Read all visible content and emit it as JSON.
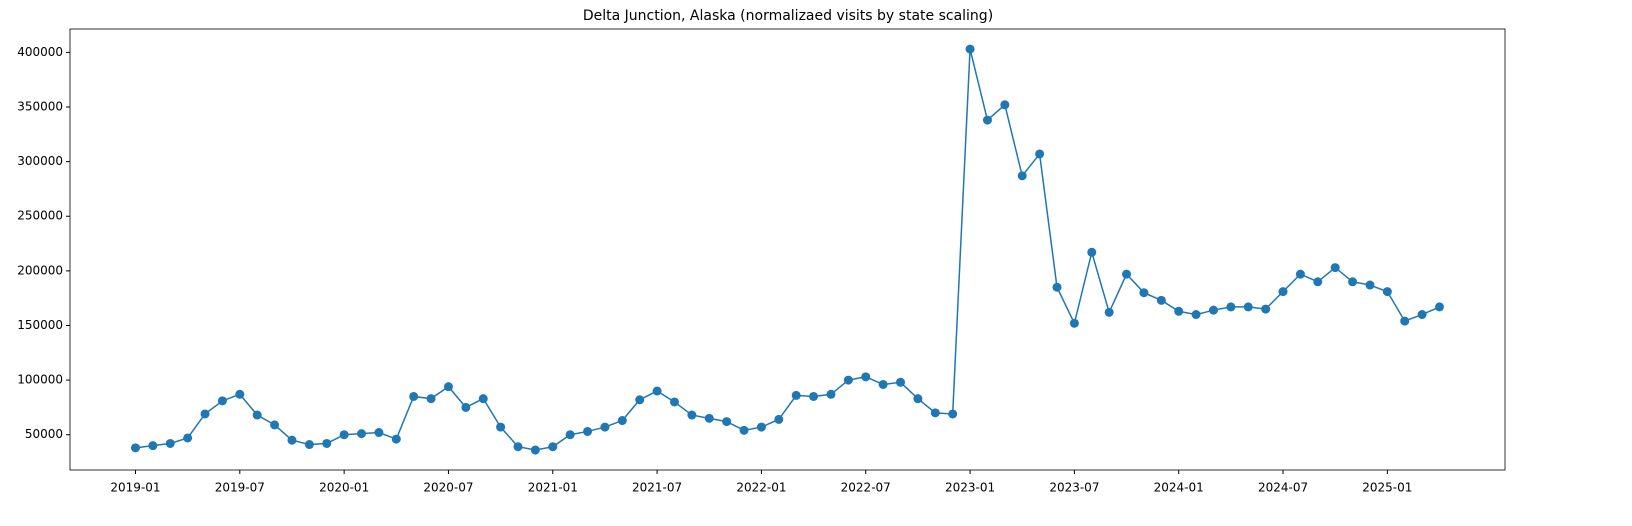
{
  "chart_data": {
    "type": "line",
    "title": "Delta Junction, Alaska (normalizaed visits by state scaling)",
    "x": [
      "2019-01",
      "2019-02",
      "2019-03",
      "2019-04",
      "2019-05",
      "2019-06",
      "2019-07",
      "2019-08",
      "2019-09",
      "2019-10",
      "2019-11",
      "2019-12",
      "2020-01",
      "2020-02",
      "2020-03",
      "2020-04",
      "2020-05",
      "2020-06",
      "2020-07",
      "2020-08",
      "2020-09",
      "2020-10",
      "2020-11",
      "2020-12",
      "2021-01",
      "2021-02",
      "2021-03",
      "2021-04",
      "2021-05",
      "2021-06",
      "2021-07",
      "2021-08",
      "2021-09",
      "2021-10",
      "2021-11",
      "2021-12",
      "2022-01",
      "2022-02",
      "2022-03",
      "2022-04",
      "2022-05",
      "2022-06",
      "2022-07",
      "2022-08",
      "2022-09",
      "2022-10",
      "2022-11",
      "2022-12",
      "2023-01",
      "2023-02",
      "2023-03",
      "2023-04",
      "2023-05",
      "2023-06",
      "2023-07",
      "2023-08",
      "2023-09",
      "2023-10",
      "2023-11",
      "2023-12",
      "2024-01",
      "2024-02",
      "2024-03",
      "2024-04",
      "2024-05",
      "2024-06",
      "2024-07",
      "2024-08",
      "2024-09",
      "2024-10",
      "2024-11",
      "2024-12",
      "2025-01",
      "2025-02",
      "2025-03",
      "2025-04"
    ],
    "series": [
      {
        "color": "#1f77b4",
        "values": [
          38000,
          40000,
          42000,
          47000,
          69000,
          81000,
          87000,
          68000,
          59000,
          45000,
          41000,
          42000,
          50000,
          51000,
          52000,
          46000,
          85000,
          83000,
          94000,
          75000,
          83000,
          57000,
          39000,
          36000,
          39000,
          50000,
          53000,
          57000,
          63000,
          82000,
          90000,
          80000,
          68000,
          65000,
          62000,
          54000,
          57000,
          64000,
          86000,
          85000,
          87000,
          100000,
          103000,
          96000,
          98000,
          83000,
          70000,
          69000,
          403000,
          338000,
          352000,
          287000,
          307000,
          185000,
          152000,
          217000,
          162000,
          197000,
          180000,
          173000,
          163000,
          160000,
          164000,
          167000,
          167000,
          165000,
          181000,
          197000,
          190000,
          203000,
          190000,
          187000,
          181000,
          154000,
          160000,
          167000
        ]
      }
    ],
    "xlim": [
      "2018-09-08",
      "2025-07-24"
    ],
    "xticks": [
      "2019-01",
      "2019-07",
      "2020-01",
      "2020-07",
      "2021-01",
      "2021-07",
      "2022-01",
      "2022-07",
      "2023-01",
      "2023-07",
      "2024-01",
      "2024-07",
      "2025-01"
    ],
    "ylim": [
      17700,
      421400
    ],
    "yticks": [
      50000,
      100000,
      150000,
      200000,
      250000,
      300000,
      350000,
      400000
    ]
  }
}
